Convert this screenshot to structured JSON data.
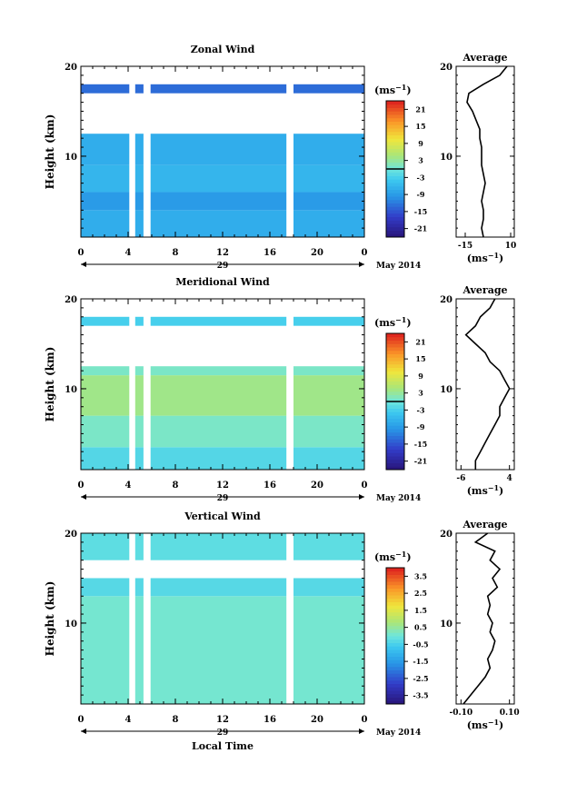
{
  "chart_data": [
    {
      "type": "heatmap",
      "title": "Zonal Wind",
      "ylabel": "Height (km)",
      "xlabel": "",
      "x_ticks": [
        "0",
        "4",
        "8",
        "12",
        "16",
        "20",
        "0"
      ],
      "xlim": [
        0,
        24
      ],
      "y_ticks": [
        "20",
        "10"
      ],
      "ylim": [
        1,
        20
      ],
      "date_day": "29",
      "date_month": "May 2014",
      "colorbar_unit": "(ms",
      "colorbar_unit_exp": "−1",
      "colorbar_ticks": [
        "21",
        "15",
        "9",
        "3",
        "-3",
        "-9",
        "-15",
        "-21"
      ],
      "colorbar_range": [
        -24,
        24
      ],
      "gaps_hours": [
        [
          4.1,
          4.6
        ],
        [
          5.3,
          5.9
        ],
        [
          17.4,
          18.0
        ]
      ],
      "bands": [
        {
          "from": 1.0,
          "to": 4.0,
          "value": -7
        },
        {
          "from": 4.0,
          "to": 6.0,
          "value": -9
        },
        {
          "from": 6.0,
          "to": 9.0,
          "value": -6
        },
        {
          "from": 9.0,
          "to": 12.5,
          "value": -7
        },
        {
          "from": 17.0,
          "to": 18.0,
          "value": -13
        }
      ],
      "average": {
        "title": "Average",
        "xlabel": "(ms",
        "xlabel_exp": "−1",
        "x_ticks": [
          "-15",
          "10"
        ],
        "xlim": [
          -20,
          12
        ],
        "y_ticks": [
          "20",
          "10"
        ],
        "height": [
          1,
          2,
          3,
          4,
          5,
          6,
          7,
          8,
          9,
          10,
          11,
          12,
          13,
          14,
          15,
          16,
          17,
          18,
          19,
          20
        ],
        "value": [
          -5,
          -6,
          -5,
          -5,
          -6,
          -5,
          -4,
          -5,
          -6,
          -6,
          -6,
          -7,
          -7,
          -9,
          -11,
          -14,
          -13,
          -5,
          4,
          8
        ]
      }
    },
    {
      "type": "heatmap",
      "title": "Meridional Wind",
      "ylabel": "Height (km)",
      "xlabel": "",
      "x_ticks": [
        "0",
        "4",
        "8",
        "12",
        "16",
        "20",
        "0"
      ],
      "xlim": [
        0,
        24
      ],
      "y_ticks": [
        "20",
        "10"
      ],
      "ylim": [
        1,
        20
      ],
      "date_day": "29",
      "date_month": "May 2014",
      "colorbar_unit": "(ms",
      "colorbar_unit_exp": "−1",
      "colorbar_ticks": [
        "21",
        "15",
        "9",
        "3",
        "-3",
        "-9",
        "-15",
        "-21"
      ],
      "colorbar_range": [
        -24,
        24
      ],
      "gaps_hours": [
        [
          4.1,
          4.6
        ],
        [
          5.3,
          5.9
        ],
        [
          17.4,
          18.0
        ]
      ],
      "bands": [
        {
          "from": 1.0,
          "to": 3.5,
          "value": -2
        },
        {
          "from": 3.5,
          "to": 7.0,
          "value": 1
        },
        {
          "from": 7.0,
          "to": 11.5,
          "value": 4
        },
        {
          "from": 11.5,
          "to": 12.5,
          "value": 1
        },
        {
          "from": 17.0,
          "to": 18.0,
          "value": -3
        }
      ],
      "average": {
        "title": "Average",
        "xlabel": "(ms",
        "xlabel_exp": "−1",
        "x_ticks": [
          "-6",
          "4"
        ],
        "xlim": [
          -7,
          5
        ],
        "y_ticks": [
          "20",
          "10"
        ],
        "height": [
          1,
          2,
          3,
          4,
          5,
          6,
          7,
          8,
          9,
          10,
          11,
          12,
          13,
          14,
          15,
          16,
          17,
          18,
          19,
          20
        ],
        "value": [
          -3,
          -3,
          -2,
          -1,
          0,
          1,
          2,
          2,
          3,
          4,
          3,
          2,
          0,
          -1,
          -3,
          -5,
          -3,
          -2,
          0,
          1
        ]
      }
    },
    {
      "type": "heatmap",
      "title": "Vertical Wind",
      "ylabel": "Height (km)",
      "xlabel": "Local Time",
      "x_ticks": [
        "0",
        "4",
        "8",
        "12",
        "16",
        "20",
        "0"
      ],
      "xlim": [
        0,
        24
      ],
      "y_ticks": [
        "20",
        "10"
      ],
      "ylim": [
        1,
        20
      ],
      "date_day": "29",
      "date_month": "May 2014",
      "colorbar_unit": "(ms",
      "colorbar_unit_exp": "−1",
      "colorbar_ticks": [
        "3.5",
        "2.5",
        "1.5",
        "0.5",
        "-0.5",
        "-1.5",
        "-2.5",
        "-3.5"
      ],
      "colorbar_range": [
        -4,
        4
      ],
      "gaps_hours": [
        [
          4.1,
          4.6
        ],
        [
          5.3,
          5.9
        ],
        [
          17.4,
          18.0
        ]
      ],
      "bands": [
        {
          "from": 1.0,
          "to": 13.0,
          "value": 0.1
        },
        {
          "from": 13.0,
          "to": 15.0,
          "value": -0.3
        },
        {
          "from": 17.0,
          "to": 20.0,
          "value": -0.2
        }
      ],
      "average": {
        "title": "Average",
        "xlabel": "(ms",
        "xlabel_exp": "−1",
        "x_ticks": [
          "-0.10",
          "0.10"
        ],
        "xlim": [
          -0.12,
          0.12
        ],
        "y_ticks": [
          "20",
          "10"
        ],
        "height": [
          1,
          2,
          3,
          4,
          5,
          6,
          7,
          8,
          9,
          10,
          11,
          12,
          13,
          14,
          15,
          16,
          17,
          18,
          19,
          20
        ],
        "value": [
          -0.09,
          -0.06,
          -0.03,
          0.0,
          0.02,
          0.01,
          0.03,
          0.04,
          0.02,
          0.03,
          0.01,
          0.02,
          0.01,
          0.05,
          0.03,
          0.06,
          0.02,
          0.04,
          -0.04,
          0.01
        ]
      }
    }
  ]
}
